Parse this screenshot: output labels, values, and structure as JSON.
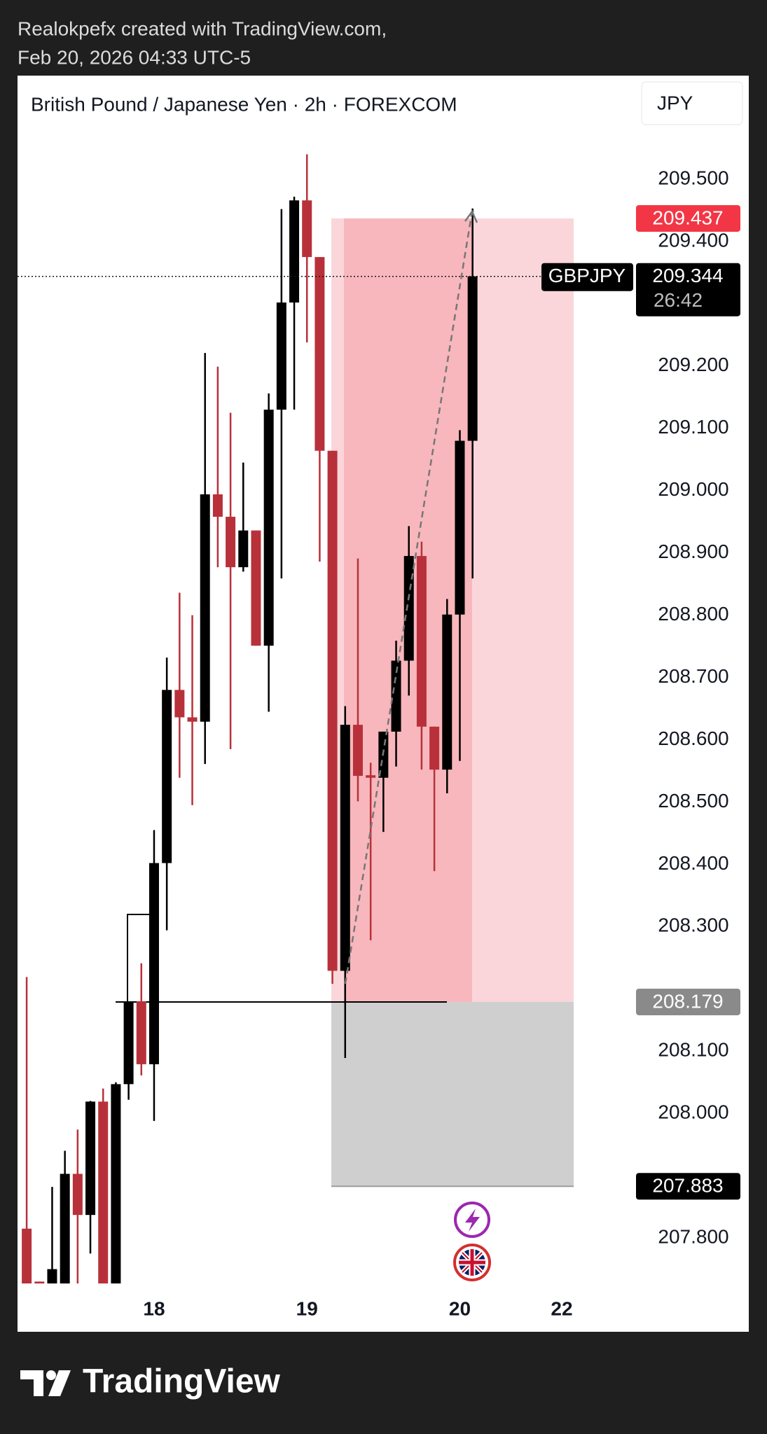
{
  "header": {
    "attribution": "Realokpefx created with TradingView.com,",
    "timestamp": "Feb 20, 2026 04:33 UTC-5"
  },
  "footer": {
    "brand": "TradingView"
  },
  "chart_data": {
    "type": "candlestick",
    "title": "British Pound / Japanese Yen · 2h · FOREXCOM",
    "currency": "JPY",
    "symbol": "GBPJPY",
    "countdown": "26:42",
    "last_price": 209.344,
    "position": {
      "stop": 209.437,
      "entry": 208.179,
      "target": 207.883
    },
    "up_color": "#000000",
    "down_color": "#b8313a",
    "open": [
      207.815,
      207.73,
      207.7,
      207.7,
      207.903,
      207.837,
      208.019,
      207.72,
      208.047,
      208.18,
      208.079,
      208.402,
      208.68,
      208.636,
      208.629,
      208.994,
      208.958,
      208.877,
      208.936,
      208.751,
      209.13,
      209.302,
      209.466,
      209.375,
      209.064,
      208.229,
      208.624,
      208.543,
      208.539,
      208.613,
      208.727,
      208.895,
      208.621,
      208.552,
      208.801,
      209.08
    ],
    "high": [
      208.219,
      207.73,
      207.882,
      207.94,
      207.974,
      208.02,
      208.04,
      208.05,
      208.18,
      208.241,
      208.455,
      208.732,
      208.836,
      208.8,
      209.221,
      209.199,
      209.125,
      209.045,
      208.936,
      209.156,
      209.452,
      209.472,
      209.54,
      209.375,
      209.064,
      208.654,
      208.891,
      208.563,
      208.613,
      208.759,
      208.943,
      208.918,
      208.621,
      208.826,
      209.097,
      209.453
    ],
    "low": [
      207.68,
      207.7,
      207.68,
      207.68,
      207.72,
      207.775,
      207.7,
      207.7,
      208.022,
      208.061,
      207.988,
      208.294,
      208.539,
      208.495,
      208.561,
      208.877,
      208.585,
      208.87,
      208.751,
      208.645,
      208.859,
      209.13,
      209.238,
      208.886,
      208.208,
      208.089,
      208.501,
      208.278,
      208.452,
      208.557,
      208.671,
      208.552,
      208.389,
      208.514,
      208.566,
      208.859
    ],
    "close": [
      207.7,
      207.72,
      207.75,
      207.903,
      207.837,
      208.019,
      207.72,
      208.047,
      208.18,
      208.079,
      208.402,
      208.68,
      208.636,
      208.629,
      208.994,
      208.958,
      208.877,
      208.936,
      208.751,
      209.13,
      209.302,
      209.466,
      209.375,
      209.064,
      208.229,
      208.624,
      208.542,
      208.539,
      208.613,
      208.727,
      208.895,
      208.621,
      208.552,
      208.801,
      209.08,
      209.344
    ],
    "ylim": [
      207.727,
      209.582
    ],
    "yticks": [
      {
        "value": 209.5,
        "label": "209.500"
      },
      {
        "value": 209.4,
        "label": "209.400"
      },
      {
        "value": 209.2,
        "label": "209.200"
      },
      {
        "value": 209.1,
        "label": "209.100"
      },
      {
        "value": 209.0,
        "label": "209.000"
      },
      {
        "value": 208.9,
        "label": "208.900"
      },
      {
        "value": 208.8,
        "label": "208.800"
      },
      {
        "value": 208.7,
        "label": "208.700"
      },
      {
        "value": 208.6,
        "label": "208.600"
      },
      {
        "value": 208.5,
        "label": "208.500"
      },
      {
        "value": 208.4,
        "label": "208.400"
      },
      {
        "value": 208.3,
        "label": "208.300"
      },
      {
        "value": 208.1,
        "label": "208.100"
      },
      {
        "value": 208.0,
        "label": "208.000"
      },
      {
        "value": 207.8,
        "label": "207.800"
      }
    ],
    "xlim": [
      -0.72,
      47.5
    ],
    "xticks": [
      {
        "value": 10,
        "label": "18"
      },
      {
        "value": 22,
        "label": "19"
      },
      {
        "value": 34,
        "label": "20"
      },
      {
        "value": 42,
        "label": "22"
      }
    ]
  }
}
